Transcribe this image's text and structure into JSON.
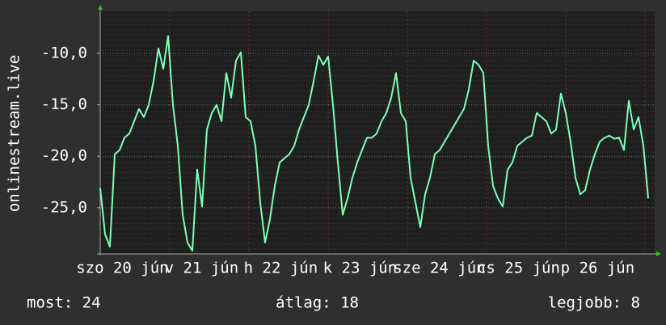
{
  "chart_data": {
    "type": "line",
    "y_label": "onlinestream.live",
    "day_labels": [
      "szo 20 jún",
      "v 21 jún",
      "h 22 jún",
      "k 23 jún",
      "sze 24 jún",
      "cs 25 jún",
      "p 26 jún"
    ],
    "series": [
      {
        "color": "#7dffb4",
        "values": [
          -23.1,
          -27.6,
          -28.8,
          -19.8,
          -19.4,
          -18.2,
          -17.8,
          -16.6,
          -15.4,
          -16.2,
          -15.0,
          -12.7,
          -9.5,
          -11.5,
          -8.3,
          -15.0,
          -19.0,
          -25.7,
          -28.4,
          -29.2,
          -21.3,
          -24.9,
          -17.4,
          -15.8,
          -15.0,
          -16.6,
          -11.9,
          -14.3,
          -10.7,
          -9.9,
          -16.2,
          -16.6,
          -19.0,
          -24.5,
          -28.4,
          -26.1,
          -22.9,
          -20.6,
          -20.2,
          -19.8,
          -19.0,
          -17.4,
          -16.2,
          -15.0,
          -12.7,
          -10.2,
          -11.1,
          -10.3,
          -15.0,
          -20.6,
          -25.7,
          -24.1,
          -22.1,
          -20.6,
          -19.4,
          -18.2,
          -18.2,
          -17.8,
          -16.6,
          -15.8,
          -14.3,
          -11.9,
          -15.8,
          -16.6,
          -22.1,
          -24.5,
          -26.9,
          -23.7,
          -22.1,
          -19.8,
          -19.4,
          -18.6,
          -17.8,
          -17.0,
          -16.2,
          -15.4,
          -13.5,
          -10.7,
          -11.1,
          -11.9,
          -19.0,
          -22.9,
          -24.1,
          -24.9,
          -21.3,
          -20.6,
          -19.0,
          -18.6,
          -18.2,
          -18.0,
          -15.8,
          -16.2,
          -16.6,
          -17.8,
          -17.4,
          -13.9,
          -15.8,
          -18.6,
          -22.1,
          -23.7,
          -23.3,
          -21.3,
          -19.8,
          -18.6,
          -18.2,
          -18.0,
          -18.3,
          -18.2,
          -19.4,
          -14.6,
          -17.4,
          -16.2,
          -19.0,
          -24.1
        ]
      }
    ],
    "ylim": [
      -29.5,
      -5.9
    ],
    "yticks": [
      {
        "value": -25,
        "label": "-25,0"
      },
      {
        "value": -20,
        "label": "-20,0"
      },
      {
        "value": -15,
        "label": "-15,0"
      },
      {
        "value": -10,
        "label": "-10,0"
      }
    ],
    "grid": true,
    "legend": [
      "most: 24",
      "átlag: 18",
      "legjobb: 8"
    ]
  }
}
